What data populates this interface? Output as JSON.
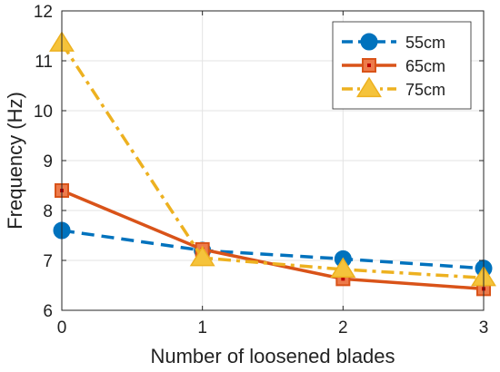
{
  "chart_data": {
    "type": "line",
    "title": "",
    "xlabel": "Number of loosened blades",
    "ylabel": "Frequency (Hz)",
    "xlim": [
      0,
      3
    ],
    "ylim": [
      6,
      12
    ],
    "xticks": [
      0,
      1,
      2,
      3
    ],
    "yticks": [
      6,
      7,
      8,
      9,
      10,
      11,
      12
    ],
    "grid": true,
    "legend_position": "top-right",
    "x": [
      0,
      1,
      2,
      3
    ],
    "series": [
      {
        "name": "55cm",
        "values": [
          7.6,
          7.2,
          7.03,
          6.84
        ],
        "color": "#0072BD",
        "line_style": "dashed",
        "marker": "circle"
      },
      {
        "name": "65cm",
        "values": [
          8.4,
          7.22,
          6.63,
          6.43
        ],
        "color": "#D95319",
        "line_style": "solid",
        "marker": "square"
      },
      {
        "name": "75cm",
        "values": [
          11.35,
          7.05,
          6.82,
          6.65
        ],
        "color": "#EDB120",
        "line_style": "dash-dot",
        "marker": "triangle"
      }
    ]
  }
}
